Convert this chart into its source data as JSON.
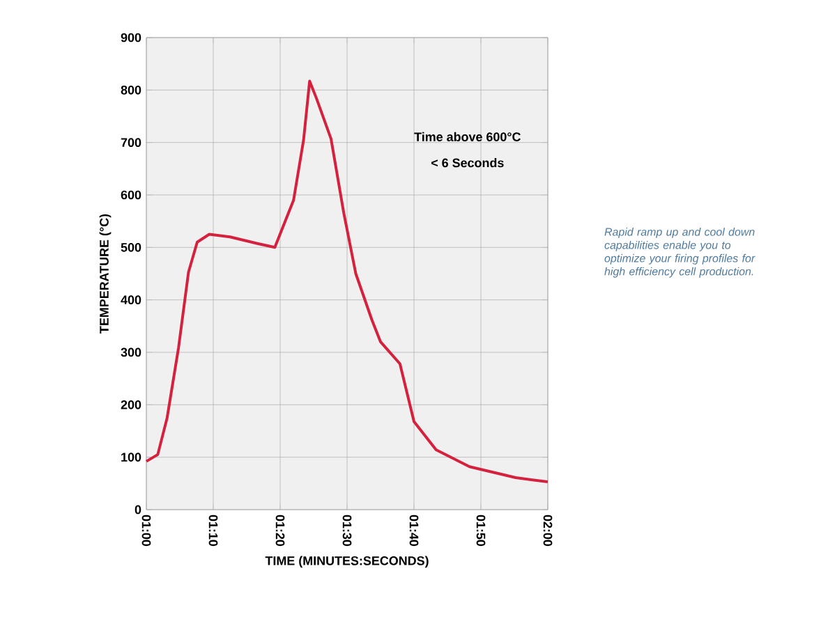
{
  "chart_data": {
    "type": "line",
    "xlabel": "TIME (MINUTES:SECONDS)",
    "ylabel": "TEMPERATURE (°C)",
    "annotations": [
      "Time above 600°C",
      "< 6 Seconds",
      "Rapid ramp up and cool down capabilities enable you to optimize your firing profiles for high efficiency cell production."
    ],
    "xlim": [
      60,
      120
    ],
    "xticks": [
      {
        "value": 60,
        "label": "01:00"
      },
      {
        "value": 70,
        "label": "01:10"
      },
      {
        "value": 80,
        "label": "01:20"
      },
      {
        "value": 90,
        "label": "01:30"
      },
      {
        "value": 100,
        "label": "01:40"
      },
      {
        "value": 110,
        "label": "01:50"
      },
      {
        "value": 120,
        "label": "02:00"
      }
    ],
    "ylim": [
      0,
      900
    ],
    "yticks": [
      0,
      100,
      200,
      300,
      400,
      500,
      600,
      700,
      800,
      900
    ],
    "grid": true,
    "series": [
      {
        "color": "#d4213d",
        "x": [
          60,
          61.7,
          63.1,
          64.8,
          66.3,
          67.6,
          69.4,
          72.5,
          76.7,
          79.2,
          82,
          83.5,
          84.4,
          85.4,
          87.6,
          89.5,
          91.3,
          93.7,
          95,
          97.9,
          100,
          103.3,
          108.3,
          115.2,
          120
        ],
        "values": [
          92,
          105,
          175,
          308,
          453,
          510,
          525,
          520,
          507,
          500,
          590,
          705,
          817,
          785,
          707,
          566,
          450,
          362,
          320,
          278,
          168,
          114,
          82,
          61,
          53
        ]
      }
    ]
  }
}
